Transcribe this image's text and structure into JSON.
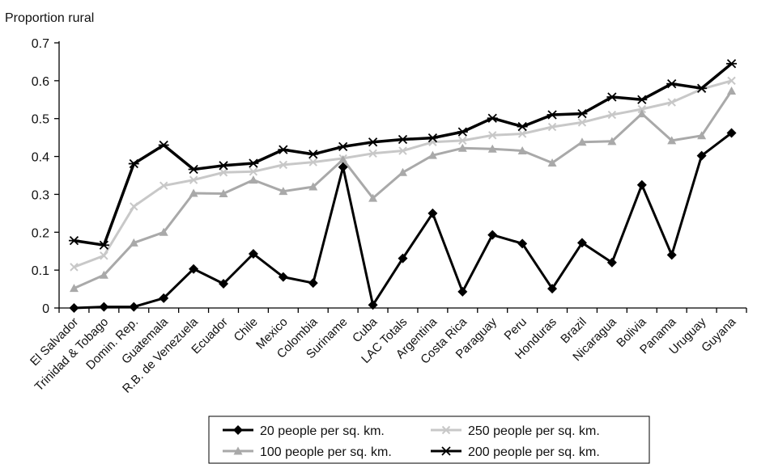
{
  "chart_data": {
    "type": "line",
    "ylabel": "Proportion rural",
    "ylim": [
      0,
      0.7
    ],
    "yticks": [
      "0",
      "0.1",
      "0.2",
      "0.3",
      "0.4",
      "0.5",
      "0.6",
      "0.7"
    ],
    "grid": false,
    "legend_position": "bottom",
    "categories": [
      "El Salvador",
      "Trinidad & Tobago",
      "Domin. Rep.",
      "Guatemala",
      "R.B. de Venezuela",
      "Ecuador",
      "Chile",
      "Mexico",
      "Colombia",
      "Suriname",
      "Cuba",
      "LAC Totals",
      "Argentina",
      "Costa Rica",
      "Paraguay",
      "Peru",
      "Honduras",
      "Brazil",
      "Nicaragua",
      "Bolivia",
      "Panama",
      "Uruguay",
      "Guyana"
    ],
    "series": [
      {
        "name": "20 people per sq. km.",
        "marker": "diamond",
        "color": "#000000",
        "values": [
          0.0,
          0.003,
          0.003,
          0.026,
          0.103,
          0.064,
          0.143,
          0.082,
          0.066,
          0.372,
          0.008,
          0.131,
          0.25,
          0.043,
          0.193,
          0.17,
          0.051,
          0.172,
          0.12,
          0.325,
          0.14,
          0.402,
          0.462
        ]
      },
      {
        "name": "250 people per sq. km.",
        "marker": "x",
        "color": "#c8c8c8",
        "values": [
          0.108,
          0.138,
          0.268,
          0.323,
          0.338,
          0.358,
          0.36,
          0.378,
          0.385,
          0.395,
          0.408,
          0.415,
          0.438,
          0.442,
          0.456,
          0.46,
          0.478,
          0.49,
          0.51,
          0.525,
          0.543,
          0.578,
          0.6
        ]
      },
      {
        "name": "100 people per sq. km.",
        "marker": "triangle",
        "color": "#a9a9a9",
        "values": [
          0.052,
          0.087,
          0.172,
          0.2,
          0.303,
          0.302,
          0.338,
          0.308,
          0.32,
          0.392,
          0.29,
          0.358,
          0.403,
          0.422,
          0.42,
          0.415,
          0.383,
          0.438,
          0.44,
          0.513,
          0.442,
          0.455,
          0.573
        ]
      },
      {
        "name": "200 people per sq. km.",
        "marker": "asterisk",
        "color": "#000000",
        "values": [
          0.178,
          0.166,
          0.381,
          0.43,
          0.366,
          0.376,
          0.382,
          0.418,
          0.406,
          0.426,
          0.438,
          0.445,
          0.449,
          0.465,
          0.501,
          0.479,
          0.51,
          0.513,
          0.557,
          0.55,
          0.592,
          0.58,
          0.645
        ]
      }
    ]
  }
}
